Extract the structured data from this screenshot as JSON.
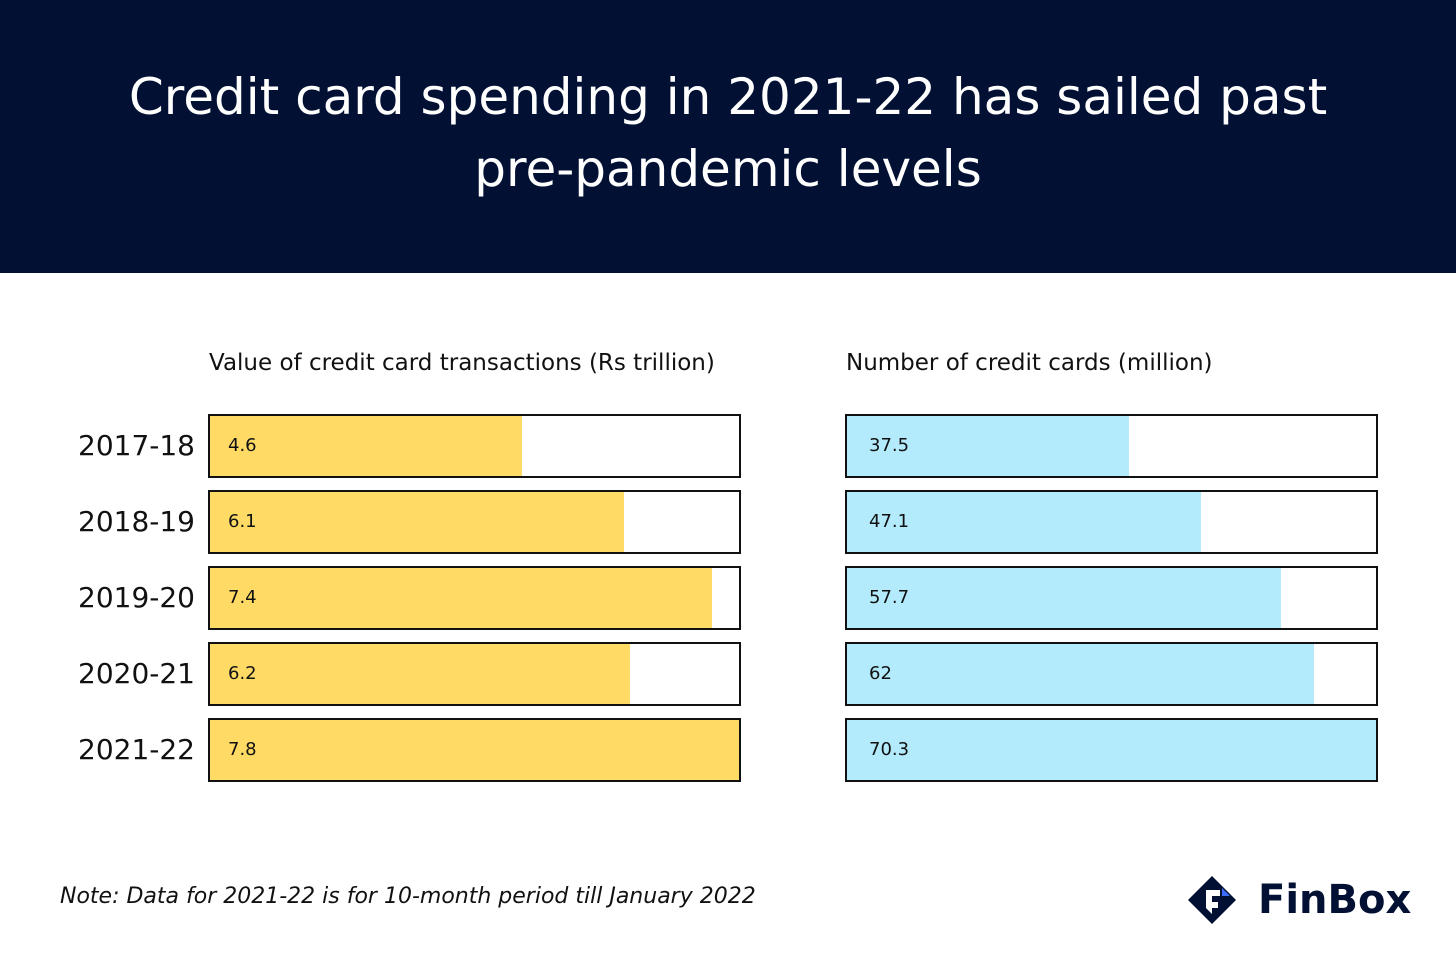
{
  "title": "Credit card spending in 2021-22 has sailed past pre-pandemic levels",
  "note": "Note: Data for 2021-22 is for 10-month period till January 2022",
  "brand": {
    "name": "FinBox",
    "icon": "finbox-logo-icon",
    "color": "#011033"
  },
  "colors": {
    "header_bg": "#011033",
    "transactions_bar": "#FFDB66",
    "cards_bar": "#B3EBFC"
  },
  "chart_data": [
    {
      "type": "bar",
      "orientation": "horizontal",
      "title": "Value of credit card transactions (Rs trillion)",
      "categories": [
        "2017-18",
        "2018-19",
        "2019-20",
        "2020-21",
        "2021-22"
      ],
      "values": [
        4.6,
        6.1,
        7.4,
        6.2,
        7.8
      ],
      "value_labels": [
        "4.6",
        "6.1",
        "7.4",
        "6.2",
        "7.8"
      ],
      "xlim": [
        0,
        7.8
      ],
      "color": "#FFDB66",
      "grid": false
    },
    {
      "type": "bar",
      "orientation": "horizontal",
      "title": "Number of credit cards (million)",
      "categories": [
        "2017-18",
        "2018-19",
        "2019-20",
        "2020-21",
        "2021-22"
      ],
      "values": [
        37.5,
        47.1,
        57.7,
        62,
        70.3
      ],
      "value_labels": [
        "37.5",
        "47.1",
        "57.7",
        "62",
        "70.3"
      ],
      "xlim": [
        0,
        70.3
      ],
      "color": "#B3EBFC",
      "grid": false
    }
  ]
}
